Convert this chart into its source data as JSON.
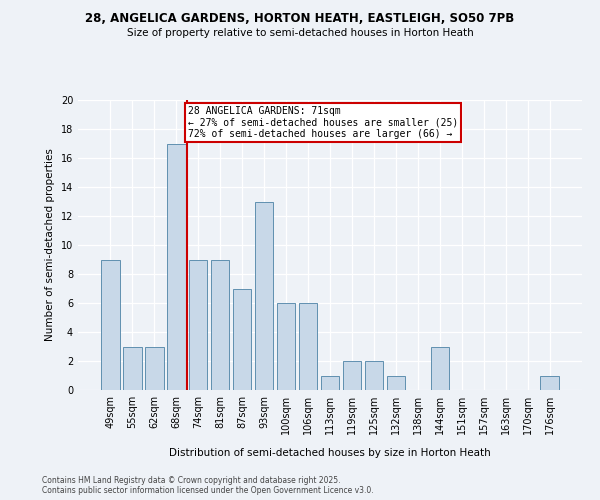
{
  "title_line1": "28, ANGELICA GARDENS, HORTON HEATH, EASTLEIGH, SO50 7PB",
  "title_line2": "Size of property relative to semi-detached houses in Horton Heath",
  "xlabel": "Distribution of semi-detached houses by size in Horton Heath",
  "ylabel": "Number of semi-detached properties",
  "categories": [
    "49sqm",
    "55sqm",
    "62sqm",
    "68sqm",
    "74sqm",
    "81sqm",
    "87sqm",
    "93sqm",
    "100sqm",
    "106sqm",
    "113sqm",
    "119sqm",
    "125sqm",
    "132sqm",
    "138sqm",
    "144sqm",
    "151sqm",
    "157sqm",
    "163sqm",
    "170sqm",
    "176sqm"
  ],
  "values": [
    9,
    3,
    3,
    17,
    9,
    9,
    7,
    13,
    6,
    6,
    1,
    2,
    2,
    1,
    0,
    3,
    0,
    0,
    0,
    0,
    1
  ],
  "bar_color": "#c8d8e8",
  "bar_edge_color": "#6090b0",
  "property_line_x": 3.5,
  "property_sqm": 71,
  "annotation_text_line1": "28 ANGELICA GARDENS: 71sqm",
  "annotation_text_line2": "← 27% of semi-detached houses are smaller (25)",
  "annotation_text_line3": "72% of semi-detached houses are larger (66) →",
  "annotation_box_color": "#cc0000",
  "ylim": [
    0,
    20
  ],
  "background_color": "#eef2f7",
  "footer_line1": "Contains HM Land Registry data © Crown copyright and database right 2025.",
  "footer_line2": "Contains public sector information licensed under the Open Government Licence v3.0."
}
